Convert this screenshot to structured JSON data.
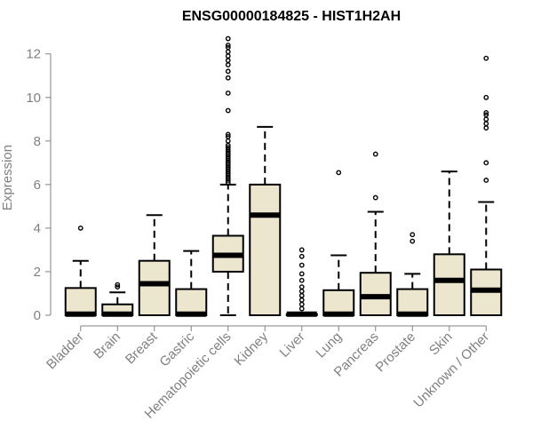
{
  "chart_data": {
    "type": "boxplot",
    "title": "ENSG00000184825 - HIST1H2AH",
    "xlabel": "",
    "ylabel": "Expression",
    "ylim": [
      0,
      12.6
    ],
    "yticks": [
      0,
      2,
      4,
      6,
      8,
      10,
      12
    ],
    "grid": false,
    "box_fill": "#ede6cf",
    "box_stroke": "#000000",
    "axis_color": "#808080",
    "categories": [
      "Bladder",
      "Brain",
      "Breast",
      "Gastric",
      "Hematopoietic cells",
      "Kidney",
      "Liver",
      "Lung",
      "Pancreas",
      "Prostate",
      "Skin",
      "Unknown / Other"
    ],
    "boxes": [
      {
        "q1": 0,
        "median": 0.05,
        "q3": 1.25,
        "whisker_low": 0,
        "whisker_high": 2.5,
        "outliers": [
          4.0
        ]
      },
      {
        "q1": 0,
        "median": 0.05,
        "q3": 0.5,
        "whisker_low": 0,
        "whisker_high": 1.05,
        "outliers": [
          1.3,
          1.4
        ]
      },
      {
        "q1": 0,
        "median": 1.45,
        "q3": 2.5,
        "whisker_low": 0,
        "whisker_high": 4.6,
        "outliers": []
      },
      {
        "q1": 0,
        "median": 0.05,
        "q3": 1.2,
        "whisker_low": 0,
        "whisker_high": 2.95,
        "outliers": []
      },
      {
        "q1": 2.0,
        "median": 2.75,
        "q3": 3.65,
        "whisker_low": 0,
        "whisker_high": 6.0,
        "outliers": [
          6.1,
          6.2,
          6.3,
          6.4,
          6.5,
          6.6,
          6.7,
          6.8,
          6.9,
          7.0,
          7.1,
          7.2,
          7.3,
          7.4,
          7.5,
          7.6,
          7.7,
          7.8,
          8.0,
          8.2,
          8.3,
          9.4,
          10.2,
          10.9,
          11.2,
          11.5,
          11.7,
          11.9,
          12.1,
          12.3,
          12.4,
          12.7
        ]
      },
      {
        "q1": 0,
        "median": 4.6,
        "q3": 6.0,
        "whisker_low": 0,
        "whisker_high": 8.65,
        "outliers": []
      },
      {
        "q1": 0,
        "median": 0.05,
        "q3": 0.05,
        "whisker_low": 0,
        "whisker_high": 0.05,
        "outliers": [
          0.3,
          0.5,
          0.7,
          0.9,
          1.1,
          1.3,
          1.6,
          1.9,
          2.3,
          2.7,
          3.0
        ]
      },
      {
        "q1": 0,
        "median": 0.05,
        "q3": 1.15,
        "whisker_low": 0,
        "whisker_high": 2.75,
        "outliers": [
          6.55
        ]
      },
      {
        "q1": 0,
        "median": 0.85,
        "q3": 1.95,
        "whisker_low": 0,
        "whisker_high": 4.75,
        "outliers": [
          5.4,
          7.4
        ]
      },
      {
        "q1": 0,
        "median": 0.05,
        "q3": 1.2,
        "whisker_low": 0,
        "whisker_high": 1.9,
        "outliers": [
          3.4,
          3.7
        ]
      },
      {
        "q1": 0,
        "median": 1.6,
        "q3": 2.8,
        "whisker_low": 0,
        "whisker_high": 6.6,
        "outliers": []
      },
      {
        "q1": 0,
        "median": 1.15,
        "q3": 2.1,
        "whisker_low": 0,
        "whisker_high": 5.2,
        "outliers": [
          6.2,
          7.0,
          8.6,
          8.8,
          9.0,
          9.2,
          9.3,
          10.0,
          11.8
        ]
      }
    ]
  }
}
